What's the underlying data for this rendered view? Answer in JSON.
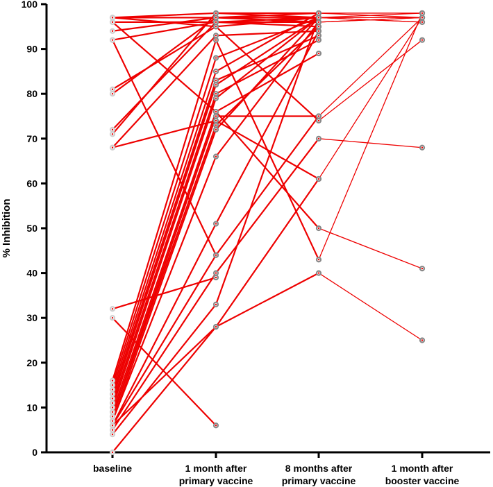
{
  "chart_data": {
    "type": "line",
    "ylabel": "% Inhibition",
    "ylim": [
      0,
      100
    ],
    "yticks": [
      0,
      10,
      20,
      30,
      40,
      50,
      60,
      70,
      80,
      90,
      100
    ],
    "categories": [
      [
        "baseline"
      ],
      [
        "1 month after",
        "primary vaccine"
      ],
      [
        "8 months after",
        "primary vaccine"
      ],
      [
        "1 month after",
        "booster vaccine"
      ]
    ],
    "line_color": "#ee0000",
    "marker_color": "#888888",
    "series": [
      {
        "values": [
          97,
          98,
          98,
          98
        ]
      },
      {
        "values": [
          97,
          97,
          98,
          97
        ]
      },
      {
        "values": [
          96,
          96,
          97,
          96
        ]
      },
      {
        "values": [
          94,
          97,
          96,
          97
        ]
      },
      {
        "values": [
          92,
          96,
          95,
          null
        ]
      },
      {
        "values": [
          97,
          95,
          74,
          92
        ]
      },
      {
        "values": [
          81,
          95,
          97,
          98
        ]
      },
      {
        "values": [
          80,
          97,
          97,
          97
        ]
      },
      {
        "values": [
          72,
          96,
          96,
          97
        ]
      },
      {
        "values": [
          71,
          98,
          97,
          96
        ]
      },
      {
        "values": [
          68,
          93,
          94,
          null
        ]
      },
      {
        "values": [
          96,
          76,
          50,
          41
        ]
      },
      {
        "values": [
          92,
          44,
          null,
          null
        ]
      },
      {
        "values": [
          68,
          74,
          61,
          null
        ]
      },
      {
        "values": [
          32,
          39,
          null,
          null
        ]
      },
      {
        "values": [
          30,
          6,
          null,
          null
        ]
      },
      {
        "values": [
          16,
          92,
          43,
          98
        ]
      },
      {
        "values": [
          15,
          88,
          97,
          null
        ]
      },
      {
        "values": [
          14,
          85,
          98,
          null
        ]
      },
      {
        "values": [
          13,
          83,
          93,
          null
        ]
      },
      {
        "values": [
          12,
          82,
          97,
          null
        ]
      },
      {
        "values": [
          11,
          80,
          92,
          null
        ]
      },
      {
        "values": [
          10,
          79,
          97,
          null
        ]
      },
      {
        "values": [
          9,
          76,
          89,
          null
        ]
      },
      {
        "values": [
          8,
          75,
          75,
          97
        ]
      },
      {
        "values": [
          8,
          73,
          95,
          null
        ]
      },
      {
        "values": [
          7,
          72,
          97,
          null
        ]
      },
      {
        "values": [
          7,
          66,
          96,
          null
        ]
      },
      {
        "values": [
          6,
          51,
          94,
          null
        ]
      },
      {
        "values": [
          6,
          44,
          75,
          null
        ]
      },
      {
        "values": [
          5,
          40,
          70,
          68
        ]
      },
      {
        "values": [
          4,
          33,
          97,
          null
        ]
      },
      {
        "values": [
          6,
          28,
          61,
          97
        ]
      },
      {
        "values": [
          0,
          28,
          40,
          25
        ]
      }
    ]
  }
}
